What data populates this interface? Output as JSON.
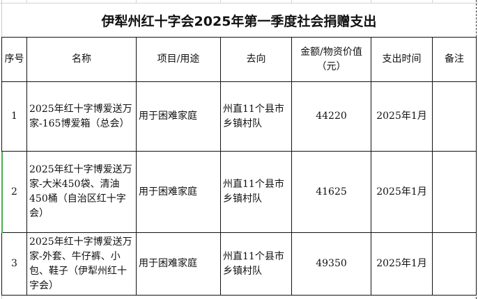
{
  "title": "伊犁州红十字会2025年第一季度社会捐赠支出",
  "headers": [
    "序号",
    "名称",
    "项目/用途",
    "去向",
    "金额/物资价值（元）",
    "支出时间",
    "备注"
  ],
  "rows": [
    {
      "no": "1",
      "name": "2025年红十字博爱送万家-165博爱箱（总会）",
      "purpose": "用于困难家庭",
      "destination": "州直11个县市乡镇村队",
      "amount": "44220",
      "time": "2025年1月",
      "note": ""
    },
    {
      "no": "2",
      "name": "2025年红十字博爱送万家-大米450袋、清油450桶（自治区红十字会）",
      "purpose": "用于困难家庭",
      "destination": "州直11个县市乡镇村队",
      "amount": "41625",
      "time": "2025年1月",
      "note": ""
    },
    {
      "no": "3",
      "name": "2025年红十字博爱送万家-外套、牛仔裤、小包、鞋子（伊犁州红十字会）",
      "purpose": "用于困难家庭",
      "destination": "州直11个县市乡镇村队",
      "amount": "49350",
      "time": "2025年1月",
      "note": ""
    }
  ]
}
